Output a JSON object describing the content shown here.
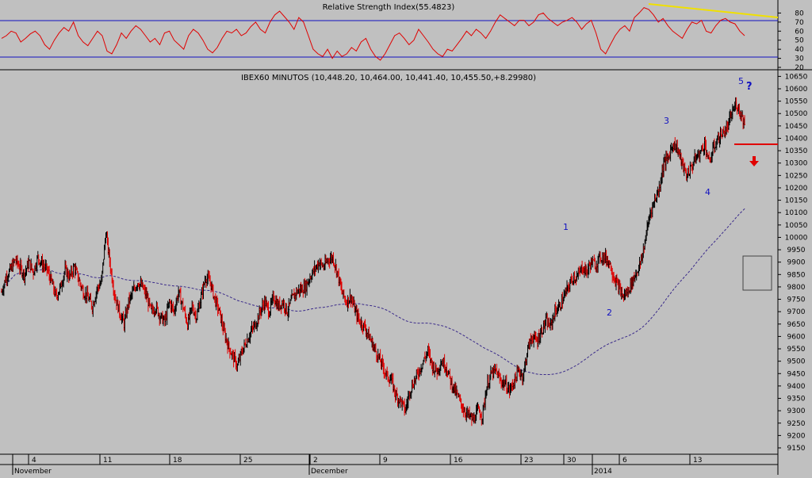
{
  "chart_data": [
    {
      "type": "line",
      "title": "Relative Strength Index(55.4823)",
      "y_ticks": [
        20,
        30,
        40,
        50,
        60,
        70,
        80
      ],
      "ylim": [
        20,
        90
      ],
      "reference_lines": [
        30,
        70
      ],
      "line_color": "#e00000",
      "values": [
        52,
        55,
        60,
        58,
        48,
        52,
        57,
        60,
        55,
        45,
        40,
        50,
        58,
        64,
        60,
        70,
        55,
        48,
        44,
        52,
        60,
        55,
        38,
        35,
        45,
        58,
        52,
        60,
        66,
        62,
        55,
        48,
        52,
        45,
        58,
        60,
        50,
        45,
        40,
        55,
        62,
        58,
        50,
        40,
        36,
        42,
        52,
        60,
        58,
        62,
        55,
        58,
        65,
        70,
        62,
        58,
        70,
        78,
        82,
        76,
        70,
        62,
        75,
        70,
        55,
        40,
        35,
        32,
        40,
        30,
        38,
        32,
        35,
        42,
        38,
        48,
        52,
        40,
        32,
        28,
        35,
        45,
        55,
        58,
        52,
        45,
        50,
        62,
        55,
        48,
        40,
        35,
        32,
        40,
        38,
        45,
        52,
        60,
        55,
        62,
        58,
        52,
        60,
        70,
        78,
        74,
        70,
        66,
        72,
        72,
        66,
        70,
        78,
        80,
        74,
        70,
        66,
        70,
        72,
        75,
        70,
        62,
        68,
        72,
        58,
        40,
        35,
        45,
        55,
        62,
        66,
        60,
        75,
        80,
        86,
        84,
        78,
        70,
        74,
        66,
        60,
        56,
        52,
        62,
        70,
        68,
        72,
        60,
        58,
        66,
        72,
        74,
        70,
        68,
        60,
        55
      ]
    },
    {
      "type": "candlestick",
      "title": "IBEX60 MINUTOS (10,448.20, 10,464.00, 10,441.40, 10,455.50,+8.29980)",
      "ylim": [
        9150,
        10650
      ],
      "y_ticks": [
        9150,
        9200,
        9250,
        9300,
        9350,
        9400,
        9450,
        9500,
        9550,
        9600,
        9650,
        9700,
        9750,
        9800,
        9850,
        9900,
        9950,
        10000,
        10050,
        10100,
        10150,
        10200,
        10250,
        10300,
        10350,
        10400,
        10450,
        10500,
        10550,
        10600,
        10650
      ],
      "close_series": [
        9780,
        9840,
        9870,
        9910,
        9880,
        9850,
        9900,
        9860,
        9920,
        9890,
        9870,
        9820,
        9760,
        9800,
        9870,
        9840,
        9880,
        9830,
        9780,
        9760,
        9720,
        9790,
        9820,
        10020,
        9880,
        9760,
        9700,
        9650,
        9740,
        9780,
        9820,
        9800,
        9760,
        9700,
        9720,
        9680,
        9660,
        9740,
        9700,
        9780,
        9720,
        9650,
        9720,
        9680,
        9760,
        9840,
        9820,
        9750,
        9700,
        9620,
        9560,
        9520,
        9480,
        9540,
        9580,
        9620,
        9650,
        9700,
        9740,
        9700,
        9760,
        9720,
        9740,
        9700,
        9750,
        9780,
        9790,
        9800,
        9840,
        9870,
        9900,
        9880,
        9910,
        9920,
        9860,
        9780,
        9740,
        9760,
        9700,
        9660,
        9640,
        9600,
        9560,
        9520,
        9480,
        9440,
        9420,
        9360,
        9340,
        9300,
        9380,
        9420,
        9460,
        9500,
        9540,
        9480,
        9460,
        9500,
        9480,
        9420,
        9380,
        9340,
        9300,
        9280,
        9260,
        9300,
        9280,
        9400,
        9450,
        9460,
        9420,
        9410,
        9380,
        9420,
        9460,
        9440,
        9550,
        9600,
        9580,
        9620,
        9660,
        9640,
        9700,
        9720,
        9760,
        9800,
        9840,
        9840,
        9880,
        9860,
        9900,
        9890,
        9920,
        9920,
        9900,
        9840,
        9800,
        9760,
        9780,
        9820,
        9860,
        9900,
        10000,
        10100,
        10150,
        10200,
        10300,
        10320,
        10380,
        10360,
        10300,
        10250,
        10280,
        10320,
        10340,
        10380,
        10300,
        10360,
        10400,
        10420,
        10440,
        10500,
        10540,
        10500,
        10455
      ]
    }
  ],
  "wave_labels": [
    "1",
    "2",
    "3",
    "4",
    "5",
    "?"
  ],
  "x_day_ticks": [
    "4",
    "11",
    "18",
    "25",
    "2",
    "9",
    "16",
    "23",
    "30",
    "6",
    "13"
  ],
  "x_month_labels": [
    "November",
    "December",
    "2014"
  ],
  "colors": {
    "background": "#c0c0c0",
    "up_bar": "#000000",
    "down_bar": "#e00000",
    "moving_average": "#3a2a8a",
    "guide_lines": "#1010c0",
    "trendline": "#f0e000",
    "wave_label": "#1010c0"
  },
  "annotations": {
    "support_line_value": 10385,
    "arrow": "down-arrow-red"
  }
}
